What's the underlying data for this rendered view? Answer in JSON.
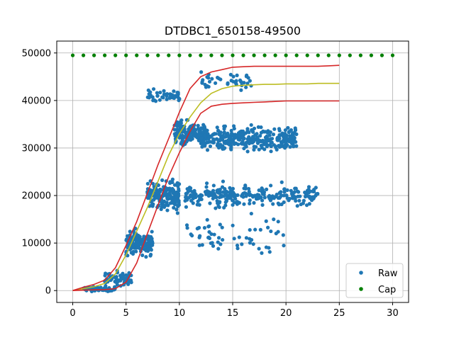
{
  "chart_data": {
    "type": "scatter",
    "title": "DTDBC1_650158-49500",
    "xlabel": "",
    "ylabel": "",
    "xlim": [
      -1.5,
      31.5
    ],
    "ylim": [
      -2500,
      52500
    ],
    "xticks": [
      0,
      5,
      10,
      15,
      20,
      25,
      30
    ],
    "yticks": [
      0,
      10000,
      20000,
      30000,
      40000,
      50000
    ],
    "grid": true,
    "legend_position": "lower-right",
    "series": [
      {
        "name": "Raw",
        "kind": "scatter",
        "color": "#1f77b4",
        "description_points": "dense cloud of several hundred points following a sigmoid growth from x≈1 to x≈23",
        "clusters": [
          {
            "x_range": [
              1,
              4
            ],
            "y_center": 300,
            "y_spread": 700,
            "count": 90
          },
          {
            "x_range": [
              3,
              5.5
            ],
            "y_center": 2500,
            "y_spread": 2500,
            "count": 70
          },
          {
            "x_range": [
              5,
              7.5
            ],
            "y_center": 10000,
            "y_spread": 4000,
            "count": 150
          },
          {
            "x_range": [
              7,
              10
            ],
            "y_center": 20000,
            "y_spread": 5000,
            "count": 180
          },
          {
            "x_range": [
              9.5,
              12.5
            ],
            "y_center": 33000,
            "y_spread": 4000,
            "count": 160
          },
          {
            "x_range": [
              12,
              21
            ],
            "y_center": 32000,
            "y_spread": 4000,
            "count": 320
          },
          {
            "x_range": [
              7,
              10
            ],
            "y_center": 41000,
            "y_spread": 2500,
            "count": 45
          },
          {
            "x_range": [
              12,
              17
            ],
            "y_center": 44000,
            "y_spread": 3000,
            "count": 40
          },
          {
            "x_range": [
              10.5,
              23
            ],
            "y_center": 20000,
            "y_spread": 3500,
            "count": 260
          },
          {
            "x_range": [
              10.5,
              20
            ],
            "y_center": 12000,
            "y_spread": 6000,
            "count": 60
          }
        ]
      },
      {
        "name": "Cap",
        "kind": "scatter",
        "color": "#008000",
        "x": [
          0,
          1,
          2,
          3,
          4,
          5,
          6,
          7,
          8,
          9,
          10,
          11,
          12,
          13,
          14,
          15,
          16,
          17,
          18,
          19,
          20,
          21,
          22,
          23,
          24,
          25,
          26,
          27,
          28,
          29,
          30
        ],
        "y": [
          49500,
          49500,
          49500,
          49500,
          49500,
          49500,
          49500,
          49500,
          49500,
          49500,
          49500,
          49500,
          49500,
          49500,
          49500,
          49500,
          49500,
          49500,
          49500,
          49500,
          49500,
          49500,
          49500,
          49500,
          49500,
          49500,
          49500,
          49500,
          49500,
          49500,
          49500
        ]
      },
      {
        "kind": "line",
        "color": "#bcbd22",
        "x": [
          0,
          1,
          2,
          3,
          4,
          5,
          6,
          7,
          8,
          9,
          10,
          11,
          12,
          13,
          14,
          15,
          16,
          17,
          18,
          19,
          20,
          21,
          22,
          23,
          24,
          25
        ],
        "y": [
          0,
          400,
          800,
          1500,
          3500,
          7500,
          12500,
          17500,
          23000,
          28500,
          33000,
          36500,
          39500,
          41500,
          42500,
          43000,
          43200,
          43300,
          43400,
          43400,
          43500,
          43500,
          43500,
          43600,
          43600,
          43600
        ]
      },
      {
        "kind": "line",
        "color": "#d62728",
        "x": [
          0,
          1,
          2,
          3,
          4,
          5,
          6,
          7,
          8,
          9,
          10,
          11,
          12,
          13,
          14,
          15,
          16,
          17,
          18,
          19,
          20,
          21,
          22,
          23,
          24,
          25
        ],
        "y": [
          0,
          700,
          1300,
          2200,
          4800,
          9500,
          14500,
          20500,
          26500,
          32000,
          37500,
          42500,
          45000,
          46000,
          46500,
          47000,
          47100,
          47200,
          47200,
          47200,
          47200,
          47200,
          47200,
          47200,
          47300,
          47400
        ]
      },
      {
        "kind": "line",
        "color": "#d62728",
        "x": [
          0,
          1,
          2,
          3,
          4,
          5,
          6,
          7,
          8,
          9,
          10,
          11,
          12,
          13,
          14,
          15,
          16,
          17,
          18,
          19,
          20,
          21,
          22,
          23,
          24,
          25
        ],
        "y": [
          0,
          100,
          150,
          200,
          400,
          1800,
          5800,
          12000,
          18000,
          24000,
          29000,
          33500,
          37300,
          38800,
          39200,
          39400,
          39500,
          39600,
          39700,
          39800,
          39900,
          39900,
          39900,
          39900,
          39900,
          39900
        ]
      }
    ]
  }
}
